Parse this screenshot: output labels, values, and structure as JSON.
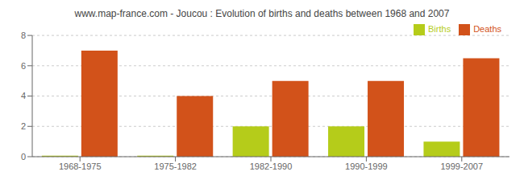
{
  "chart_data": {
    "type": "bar",
    "title": "www.map-france.com - Joucou : Evolution of births and deaths between 1968 and 2007",
    "categories": [
      "1968-1975",
      "1975-1982",
      "1982-1990",
      "1990-1999",
      "1999-2007"
    ],
    "series": [
      {
        "name": "Births",
        "color": "#b5cc1a",
        "values": [
          0.07,
          0.07,
          2,
          2,
          1
        ]
      },
      {
        "name": "Deaths",
        "color": "#d2521a",
        "values": [
          7,
          4,
          5,
          5,
          6.5
        ]
      }
    ],
    "ylim": [
      0,
      8
    ],
    "yticks": [
      0,
      2,
      4,
      6,
      8
    ],
    "grid": true,
    "legend": "upper right"
  }
}
